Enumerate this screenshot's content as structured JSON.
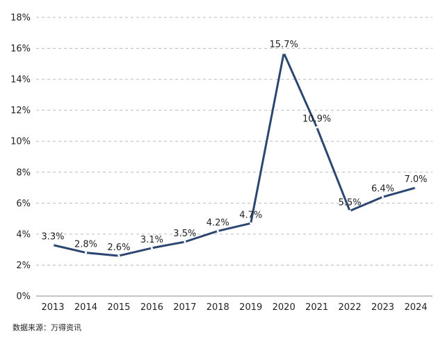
{
  "chart_data": {
    "type": "line",
    "title": "",
    "xlabel": "",
    "ylabel": "",
    "x": [
      "2013",
      "2014",
      "2015",
      "2016",
      "2017",
      "2018",
      "2019",
      "2020",
      "2021",
      "2022",
      "2023",
      "2024"
    ],
    "series": [
      {
        "values": [
          3.3,
          2.8,
          2.6,
          3.1,
          3.5,
          4.2,
          4.7,
          15.7,
          10.9,
          5.5,
          6.4,
          7.0
        ],
        "labels": [
          "3.3%",
          "2.8%",
          "2.6%",
          "3.1%",
          "3.5%",
          "4.2%",
          "4.7%",
          "15.7%",
          "10.9%",
          "5.5%",
          "6.4%",
          "7.0%"
        ]
      }
    ],
    "ylim": [
      0,
      18
    ],
    "yticks": [
      0,
      2,
      4,
      6,
      8,
      10,
      12,
      14,
      16,
      18
    ],
    "ytick_labels": [
      "0%",
      "2%",
      "4%",
      "6%",
      "8%",
      "10%",
      "12%",
      "14%",
      "16%",
      "18%"
    ],
    "grid": true,
    "line_color": "#2c4672",
    "grid_color": "#bbbbbb"
  },
  "source_note": "数据来源：万得资讯"
}
